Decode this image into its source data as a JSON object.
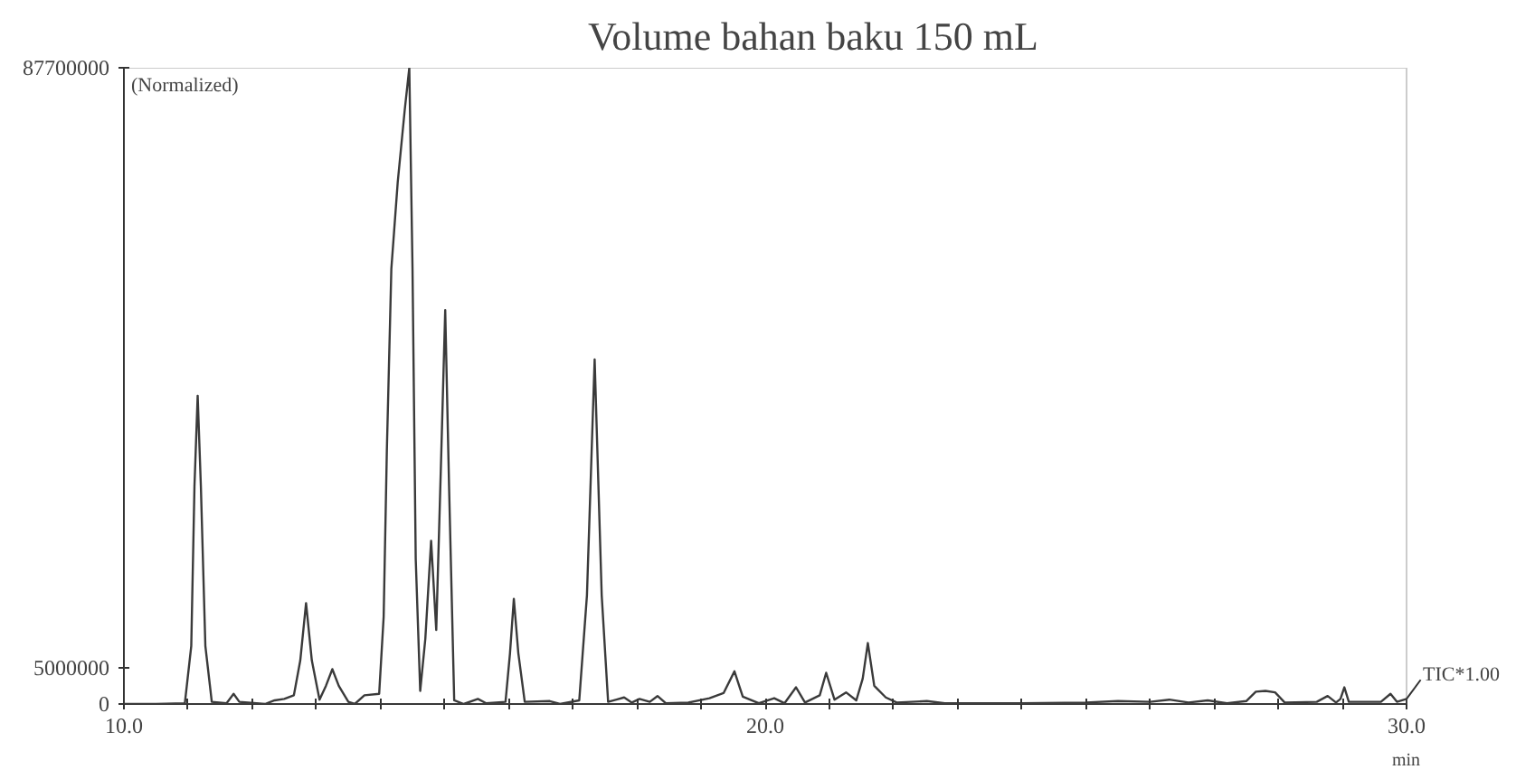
{
  "chart_data": {
    "type": "line",
    "title": "Volume bahan baku 150 mL",
    "xlabel": "min",
    "annotations": [
      "(Normalized)",
      {
        "text": "TIC*1.00",
        "x": 30.0,
        "y": 700000
      }
    ],
    "xlim": [
      10.0,
      30.0
    ],
    "ylim": [
      0,
      87700000
    ],
    "xticks": [
      {
        "value": 10,
        "label": "10.0"
      },
      {
        "value": 11,
        "label": null
      },
      {
        "value": 12,
        "label": null
      },
      {
        "value": 13,
        "label": null
      },
      {
        "value": 14,
        "label": null
      },
      {
        "value": 15,
        "label": null
      },
      {
        "value": 16,
        "label": null
      },
      {
        "value": 17,
        "label": null
      },
      {
        "value": 18,
        "label": null
      },
      {
        "value": 19,
        "label": null
      },
      {
        "value": 20,
        "label": "20.0"
      },
      {
        "value": 21,
        "label": null
      },
      {
        "value": 22,
        "label": null
      },
      {
        "value": 23,
        "label": null
      },
      {
        "value": 24,
        "label": null
      },
      {
        "value": 25,
        "label": null
      },
      {
        "value": 26,
        "label": null
      },
      {
        "value": 27,
        "label": null
      },
      {
        "value": 28,
        "label": null
      },
      {
        "value": 29,
        "label": null
      },
      {
        "value": 30,
        "label": "30.0"
      }
    ],
    "yticks": [
      {
        "value": 0,
        "label": "0"
      },
      {
        "value": 5000000,
        "label": "5000000"
      },
      {
        "value": 87700000,
        "label": "87700000"
      }
    ],
    "grid": false,
    "line_style": "solid",
    "series": [
      {
        "color": "#3a3a3a",
        "x": [
          10.0,
          10.5,
          10.95,
          11.05,
          11.1,
          11.15,
          11.2,
          11.27,
          11.37,
          11.6,
          11.71,
          11.8,
          12.2,
          12.35,
          12.5,
          12.65,
          12.75,
          12.84,
          12.93,
          13.05,
          13.15,
          13.25,
          13.35,
          13.5,
          13.6,
          13.75,
          13.98,
          14.05,
          14.1,
          14.17,
          14.27,
          14.38,
          14.45,
          14.5,
          14.55,
          14.62,
          14.7,
          14.79,
          14.87,
          14.95,
          15.01,
          15.07,
          15.15,
          15.3,
          15.52,
          15.65,
          15.95,
          16.02,
          16.08,
          16.15,
          16.25,
          16.64,
          16.8,
          17.1,
          17.22,
          17.34,
          17.45,
          17.55,
          17.68,
          17.8,
          17.92,
          18.04,
          18.2,
          18.32,
          18.45,
          18.8,
          19.13,
          19.35,
          19.52,
          19.65,
          19.9,
          20.14,
          20.3,
          20.48,
          20.62,
          20.85,
          20.95,
          21.08,
          21.26,
          21.42,
          21.52,
          21.6,
          21.7,
          21.88,
          22.05,
          22.52,
          22.8,
          24.0,
          25.0,
          25.5,
          26.0,
          26.3,
          26.6,
          26.9,
          27.2,
          27.5,
          27.65,
          27.8,
          27.95,
          28.1,
          28.6,
          28.77,
          28.9,
          28.97,
          29.03,
          29.1,
          29.6,
          29.75,
          29.85,
          30.0
        ],
        "values": [
          0,
          0,
          100000,
          8000000,
          30000000,
          42500000,
          30000000,
          8000000,
          300000,
          100000,
          1400000,
          300000,
          0,
          500000,
          700000,
          1200000,
          6000000,
          13900000,
          6000000,
          600000,
          2500000,
          4800000,
          2500000,
          300000,
          0,
          1200000,
          1400000,
          12000000,
          35000000,
          60000000,
          72000000,
          82000000,
          87700000,
          60000000,
          20000000,
          1800000,
          9000000,
          22500000,
          10200000,
          35000000,
          54300000,
          30000000,
          500000,
          0,
          700000,
          100000,
          300000,
          7000000,
          14500000,
          7000000,
          300000,
          400000,
          0,
          500000,
          15000000,
          47500000,
          15000000,
          300000,
          600000,
          900000,
          200000,
          700000,
          300000,
          1100000,
          100000,
          200000,
          800000,
          1500000,
          4500000,
          1000000,
          100000,
          800000,
          100000,
          2300000,
          200000,
          1200000,
          4300000,
          600000,
          1600000,
          500000,
          3500000,
          8400000,
          2500000,
          900000,
          200000,
          400000,
          100000,
          100000,
          200000,
          400000,
          300000,
          600000,
          200000,
          500000,
          100000,
          400000,
          1700000,
          1800000,
          1600000,
          200000,
          300000,
          1100000,
          200000,
          700000,
          2300000,
          300000,
          300000,
          1400000,
          300000,
          700000
        ]
      }
    ]
  }
}
